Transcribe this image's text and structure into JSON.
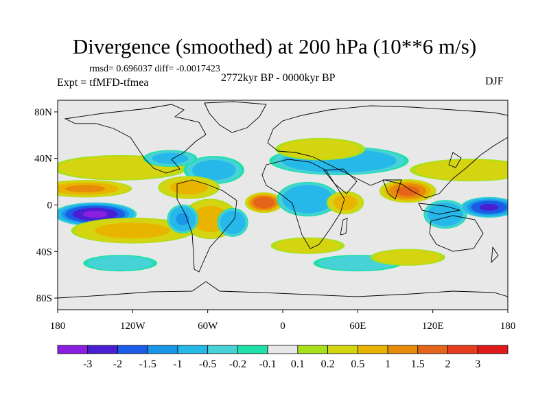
{
  "header": {
    "title": "Divergence (smoothed) at 200 hPa (10**6 m/s)",
    "stats": "rmsd= 0.696037 diff= -0.0017423",
    "experiment": "Expt = tfMFD-tfmea",
    "period": "2772kyr BP - 0000kyr BP",
    "season": "DJF"
  },
  "axes": {
    "lat_ticks": [
      "80N",
      "40N",
      "0",
      "40S",
      "80S"
    ],
    "lon_ticks": [
      "180",
      "120W",
      "60W",
      "0",
      "60E",
      "120E",
      "180"
    ]
  },
  "colorbar": {
    "labels": [
      "-3",
      "-2",
      "-1.5",
      "-1",
      "-0.5",
      "-0.2",
      "-0.1",
      "0.1",
      "0.2",
      "0.5",
      "1",
      "1.5",
      "2",
      "3"
    ],
    "colors": [
      "#8a1fe0",
      "#4a1fd4",
      "#1a5ce6",
      "#1a96e6",
      "#27b8ea",
      "#46d2d6",
      "#1fe0a8",
      "#e8e8e8",
      "#a8e01c",
      "#d4d410",
      "#e8b400",
      "#e88a0a",
      "#e6641a",
      "#e63c1e",
      "#e01a1a"
    ]
  },
  "field": {
    "blobs": [
      {
        "lon": -150,
        "lat": -8,
        "sx": 26,
        "sy": 8,
        "v": -3.2
      },
      {
        "lon": -158,
        "lat": 14,
        "sx": 30,
        "sy": 6,
        "v": 1.2
      },
      {
        "lon": -120,
        "lat": -22,
        "sx": 40,
        "sy": 9,
        "v": 0.9
      },
      {
        "lon": -130,
        "lat": 32,
        "sx": 45,
        "sy": 9,
        "v": 0.6
      },
      {
        "lon": -55,
        "lat": 30,
        "sx": 20,
        "sy": 10,
        "v": -0.6
      },
      {
        "lon": -75,
        "lat": 15,
        "sx": 20,
        "sy": 8,
        "v": 0.9
      },
      {
        "lon": -58,
        "lat": -12,
        "sx": 18,
        "sy": 14,
        "v": 1.0
      },
      {
        "lon": -80,
        "lat": -12,
        "sx": 10,
        "sy": 10,
        "v": -1.2
      },
      {
        "lon": -40,
        "lat": -15,
        "sx": 10,
        "sy": 10,
        "v": -1.0
      },
      {
        "lon": -15,
        "lat": 2,
        "sx": 12,
        "sy": 7,
        "v": 2.2
      },
      {
        "lon": 20,
        "lat": 5,
        "sx": 20,
        "sy": 12,
        "v": -1.0
      },
      {
        "lon": 50,
        "lat": 2,
        "sx": 12,
        "sy": 8,
        "v": 1.0
      },
      {
        "lon": 45,
        "lat": 38,
        "sx": 45,
        "sy": 10,
        "v": -1.0
      },
      {
        "lon": 30,
        "lat": 48,
        "sx": 30,
        "sy": 8,
        "v": 0.5
      },
      {
        "lon": 100,
        "lat": 12,
        "sx": 18,
        "sy": 8,
        "v": 1.8
      },
      {
        "lon": 130,
        "lat": -8,
        "sx": 14,
        "sy": 10,
        "v": -1.0
      },
      {
        "lon": 165,
        "lat": -2,
        "sx": 18,
        "sy": 7,
        "v": -2.5
      },
      {
        "lon": 150,
        "lat": 30,
        "sx": 40,
        "sy": 8,
        "v": 0.6
      },
      {
        "lon": -130,
        "lat": -50,
        "sx": 25,
        "sy": 6,
        "v": -0.4
      },
      {
        "lon": 60,
        "lat": -50,
        "sx": 30,
        "sy": 6,
        "v": -0.4
      },
      {
        "lon": 20,
        "lat": -35,
        "sx": 25,
        "sy": 6,
        "v": 0.4
      },
      {
        "lon": -90,
        "lat": 40,
        "sx": 18,
        "sy": 6,
        "v": -0.5
      },
      {
        "lon": 100,
        "lat": -45,
        "sx": 25,
        "sy": 6,
        "v": 0.5
      }
    ]
  }
}
